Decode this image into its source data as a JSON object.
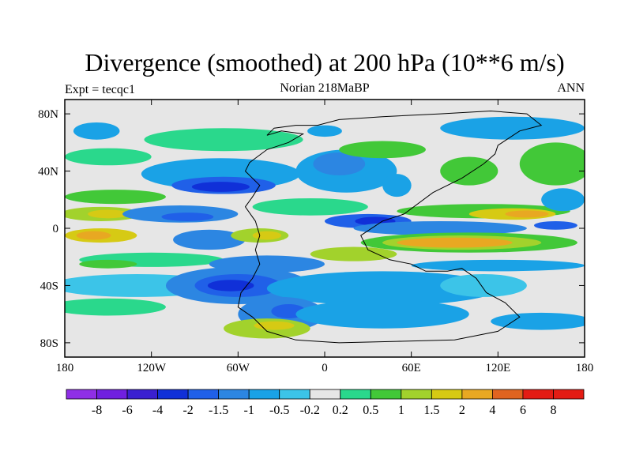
{
  "chart_data": {
    "type": "heatmap",
    "title": "Divergence (smoothed) at 200 hPa (10**6 m/s)",
    "subtitle_left": "Expt = tecqc1",
    "subtitle_center": "Norian 218MaBP",
    "subtitle_right": "ANN",
    "x_ticks": [
      {
        "value": -180,
        "label": "180"
      },
      {
        "value": -120,
        "label": "120W"
      },
      {
        "value": -60,
        "label": "60W"
      },
      {
        "value": 0,
        "label": "0"
      },
      {
        "value": 60,
        "label": "60E"
      },
      {
        "value": 120,
        "label": "120E"
      },
      {
        "value": 180,
        "label": "180"
      }
    ],
    "y_ticks": [
      {
        "value": 80,
        "label": "80N"
      },
      {
        "value": 40,
        "label": "40N"
      },
      {
        "value": 0,
        "label": "0"
      },
      {
        "value": -40,
        "label": "40S"
      },
      {
        "value": -80,
        "label": "80S"
      }
    ],
    "xlim": [
      -180,
      180
    ],
    "ylim": [
      -90,
      90
    ],
    "levels": [
      "-8",
      "-6",
      "-4",
      "-2",
      "-1.5",
      "-1",
      "-0.5",
      "-0.2",
      "0.2",
      "0.5",
      "1",
      "1.5",
      "2",
      "4",
      "6",
      "8"
    ],
    "colors": [
      "#8f2fe6",
      "#7020e0",
      "#3a20d0",
      "#1030d8",
      "#2060e8",
      "#2c86e2",
      "#1aa2e6",
      "#3cc4e8",
      "#e6e6e6",
      "#2ad88c",
      "#42c838",
      "#a2d22c",
      "#d6ca14",
      "#e8a822",
      "#e06420",
      "#e41c14"
    ],
    "fields": [
      {
        "x": -158,
        "y": 68,
        "rx": 16,
        "ry": 6,
        "level": 6
      },
      {
        "x": -150,
        "y": 50,
        "rx": 30,
        "ry": 6,
        "level": 9
      },
      {
        "x": -70,
        "y": 62,
        "rx": 55,
        "ry": 8,
        "level": 9
      },
      {
        "x": 0,
        "y": 68,
        "rx": 12,
        "ry": 4,
        "level": 6
      },
      {
        "x": -72,
        "y": 38,
        "rx": 55,
        "ry": 11,
        "level": 6
      },
      {
        "x": -70,
        "y": 30,
        "rx": 36,
        "ry": 6,
        "level": 4
      },
      {
        "x": -72,
        "y": 29,
        "rx": 20,
        "ry": 3.5,
        "level": 3
      },
      {
        "x": 15,
        "y": 40,
        "rx": 35,
        "ry": 15,
        "level": 6
      },
      {
        "x": 10,
        "y": 45,
        "rx": 18,
        "ry": 8,
        "level": 5
      },
      {
        "x": 40,
        "y": 55,
        "rx": 30,
        "ry": 6,
        "level": 10
      },
      {
        "x": -145,
        "y": 22,
        "rx": 35,
        "ry": 5,
        "level": 10
      },
      {
        "x": -155,
        "y": 10,
        "rx": 28,
        "ry": 5,
        "level": 11
      },
      {
        "x": -150,
        "y": 10,
        "rx": 14,
        "ry": 3,
        "level": 12
      },
      {
        "x": -100,
        "y": 10,
        "rx": 40,
        "ry": 6,
        "level": 5
      },
      {
        "x": -95,
        "y": 8,
        "rx": 18,
        "ry": 3,
        "level": 4
      },
      {
        "x": -10,
        "y": 15,
        "rx": 40,
        "ry": 6,
        "level": 9
      },
      {
        "x": 30,
        "y": 5,
        "rx": 30,
        "ry": 5,
        "level": 4
      },
      {
        "x": 35,
        "y": 5,
        "rx": 14,
        "ry": 3,
        "level": 3
      },
      {
        "x": -155,
        "y": -5,
        "rx": 25,
        "ry": 5,
        "level": 12
      },
      {
        "x": -160,
        "y": -5,
        "rx": 12,
        "ry": 3,
        "level": 13
      },
      {
        "x": -80,
        "y": -8,
        "rx": 25,
        "ry": 7,
        "level": 5
      },
      {
        "x": -45,
        "y": -5,
        "rx": 20,
        "ry": 5,
        "level": 11
      },
      {
        "x": -40,
        "y": -5,
        "rx": 10,
        "ry": 3,
        "level": 12
      },
      {
        "x": 110,
        "y": 12,
        "rx": 60,
        "ry": 5,
        "level": 10
      },
      {
        "x": 130,
        "y": 10,
        "rx": 30,
        "ry": 4,
        "level": 12
      },
      {
        "x": 140,
        "y": 10,
        "rx": 15,
        "ry": 2.5,
        "level": 13
      },
      {
        "x": 160,
        "y": 2,
        "rx": 15,
        "ry": 3,
        "level": 4
      },
      {
        "x": 80,
        "y": 0,
        "rx": 60,
        "ry": 5,
        "level": 5
      },
      {
        "x": 100,
        "y": -10,
        "rx": 75,
        "ry": 7,
        "level": 10
      },
      {
        "x": 95,
        "y": -10,
        "rx": 55,
        "ry": 5,
        "level": 11
      },
      {
        "x": 90,
        "y": -10,
        "rx": 40,
        "ry": 3.5,
        "level": 13
      },
      {
        "x": 20,
        "y": -18,
        "rx": 30,
        "ry": 5,
        "level": 11
      },
      {
        "x": -120,
        "y": -22,
        "rx": 50,
        "ry": 5,
        "level": 9
      },
      {
        "x": -150,
        "y": -25,
        "rx": 20,
        "ry": 3,
        "level": 10
      },
      {
        "x": -40,
        "y": -25,
        "rx": 40,
        "ry": 6,
        "level": 5
      },
      {
        "x": 120,
        "y": -26,
        "rx": 60,
        "ry": 4,
        "level": 6
      },
      {
        "x": -130,
        "y": -40,
        "rx": 60,
        "ry": 8,
        "level": 7
      },
      {
        "x": -60,
        "y": -40,
        "rx": 50,
        "ry": 13,
        "level": 5
      },
      {
        "x": -60,
        "y": -40,
        "rx": 30,
        "ry": 8,
        "level": 4
      },
      {
        "x": -65,
        "y": -40,
        "rx": 16,
        "ry": 4,
        "level": 3
      },
      {
        "x": 40,
        "y": -42,
        "rx": 80,
        "ry": 12,
        "level": 6
      },
      {
        "x": 110,
        "y": -40,
        "rx": 30,
        "ry": 8,
        "level": 7
      },
      {
        "x": -150,
        "y": -55,
        "rx": 40,
        "ry": 6,
        "level": 9
      },
      {
        "x": -30,
        "y": -60,
        "rx": 30,
        "ry": 12,
        "level": 5
      },
      {
        "x": -25,
        "y": -58,
        "rx": 12,
        "ry": 5,
        "level": 4
      },
      {
        "x": 40,
        "y": -60,
        "rx": 60,
        "ry": 10,
        "level": 6
      },
      {
        "x": -40,
        "y": -70,
        "rx": 30,
        "ry": 7,
        "level": 11
      },
      {
        "x": -35,
        "y": -68,
        "rx": 14,
        "ry": 3,
        "level": 12
      },
      {
        "x": 150,
        "y": -65,
        "rx": 35,
        "ry": 6,
        "level": 6
      },
      {
        "x": 130,
        "y": 70,
        "rx": 50,
        "ry": 8,
        "level": 6
      },
      {
        "x": 100,
        "y": 40,
        "rx": 20,
        "ry": 10,
        "level": 10
      },
      {
        "x": 160,
        "y": 45,
        "rx": 25,
        "ry": 15,
        "level": 10
      },
      {
        "x": 165,
        "y": 20,
        "rx": 15,
        "ry": 8,
        "level": 6
      },
      {
        "x": 50,
        "y": 30,
        "rx": 10,
        "ry": 8,
        "level": 6
      }
    ],
    "coastline": [
      [
        -40,
        65
      ],
      [
        -30,
        68
      ],
      [
        -15,
        66
      ],
      [
        -25,
        60
      ],
      [
        -40,
        55
      ],
      [
        -52,
        46
      ],
      [
        -55,
        40
      ],
      [
        -45,
        30
      ],
      [
        -50,
        22
      ],
      [
        -55,
        15
      ],
      [
        -48,
        5
      ],
      [
        -45,
        -5
      ],
      [
        -48,
        -15
      ],
      [
        -45,
        -25
      ],
      [
        -50,
        -35
      ],
      [
        -58,
        -45
      ],
      [
        -60,
        -55
      ],
      [
        -50,
        -62
      ],
      [
        -40,
        -72
      ],
      [
        -20,
        -78
      ],
      [
        10,
        -80
      ],
      [
        50,
        -79
      ],
      [
        90,
        -78
      ],
      [
        120,
        -72
      ],
      [
        135,
        -62
      ],
      [
        125,
        -52
      ],
      [
        112,
        -45
      ],
      [
        105,
        -35
      ],
      [
        95,
        -28
      ],
      [
        85,
        -30
      ],
      [
        70,
        -30
      ],
      [
        60,
        -25
      ],
      [
        45,
        -22
      ],
      [
        30,
        -15
      ],
      [
        25,
        -5
      ],
      [
        40,
        5
      ],
      [
        55,
        10
      ],
      [
        75,
        25
      ],
      [
        95,
        35
      ],
      [
        110,
        45
      ],
      [
        118,
        52
      ],
      [
        120,
        58
      ],
      [
        135,
        68
      ],
      [
        150,
        72
      ],
      [
        140,
        80
      ],
      [
        115,
        82
      ],
      [
        80,
        80
      ],
      [
        40,
        78
      ],
      [
        10,
        76
      ],
      [
        -5,
        72
      ],
      [
        -20,
        72
      ],
      [
        -35,
        70
      ],
      [
        -40,
        65
      ]
    ]
  }
}
